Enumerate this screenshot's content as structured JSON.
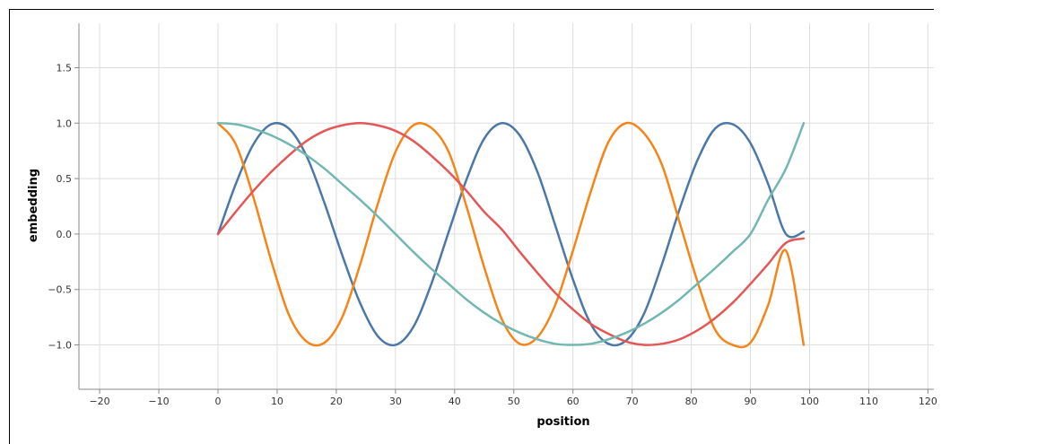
{
  "chart_data": {
    "type": "line",
    "title": "",
    "xlabel": "position",
    "ylabel": "embedding",
    "xlim": [
      -23.5,
      121
    ],
    "ylim": [
      -1.4,
      1.9
    ],
    "x_ticks": [
      -20,
      -10,
      0,
      10,
      20,
      30,
      40,
      50,
      60,
      70,
      80,
      90,
      100,
      110,
      120
    ],
    "y_ticks": [
      -1.0,
      -0.5,
      0.0,
      0.5,
      1.0,
      1.5
    ],
    "x_tick_labels": [
      "−20",
      "−10",
      "0",
      "10",
      "20",
      "30",
      "40",
      "50",
      "60",
      "70",
      "80",
      "90",
      "100",
      "110",
      "120"
    ],
    "y_tick_labels": [
      "−1.0",
      "−0.5",
      "0.0",
      "0.5",
      "1.0",
      "1.5"
    ],
    "grid": true,
    "legend": "none",
    "x": [
      0,
      3,
      6,
      9,
      12,
      15,
      18,
      21,
      24,
      27,
      30,
      33,
      36,
      39,
      42,
      45,
      48,
      51,
      54,
      57,
      60,
      63,
      66,
      69,
      72,
      75,
      78,
      81,
      84,
      87,
      90,
      93,
      96,
      99
    ],
    "series": [
      {
        "color": "#4c78a8",
        "values": [
          0.0,
          0.45,
          0.81,
          0.99,
          0.95,
          0.7,
          0.28,
          -0.19,
          -0.62,
          -0.92,
          -1.0,
          -0.84,
          -0.46,
          0.02,
          0.49,
          0.86,
          1.0,
          0.89,
          0.56,
          0.08,
          -0.41,
          -0.81,
          -0.99,
          -0.96,
          -0.72,
          -0.28,
          0.22,
          0.66,
          0.95,
          0.99,
          0.82,
          0.45,
          0.0,
          0.02
        ]
      },
      {
        "color": "#f58518",
        "values": [
          1.0,
          0.81,
          0.33,
          -0.24,
          -0.73,
          -0.97,
          -0.98,
          -0.75,
          -0.28,
          0.27,
          0.74,
          0.98,
          0.96,
          0.74,
          0.25,
          -0.3,
          -0.77,
          -0.99,
          -0.93,
          -0.64,
          -0.15,
          0.38,
          0.83,
          1.0,
          0.91,
          0.63,
          0.11,
          -0.42,
          -0.86,
          -1.0,
          -0.98,
          -0.64,
          -0.15,
          -1.0
        ]
      },
      {
        "color": "#e45756",
        "values": [
          0.0,
          0.2,
          0.39,
          0.56,
          0.71,
          0.84,
          0.93,
          0.98,
          1.0,
          0.98,
          0.93,
          0.84,
          0.71,
          0.56,
          0.39,
          0.2,
          0.04,
          -0.16,
          -0.35,
          -0.53,
          -0.68,
          -0.81,
          -0.9,
          -0.97,
          -1.0,
          -0.99,
          -0.95,
          -0.87,
          -0.76,
          -0.62,
          -0.45,
          -0.27,
          -0.08,
          -0.04
        ]
      },
      {
        "color": "#72b7b2",
        "values": [
          1.0,
          0.99,
          0.95,
          0.89,
          0.81,
          0.71,
          0.59,
          0.45,
          0.31,
          0.16,
          0.0,
          -0.16,
          -0.31,
          -0.45,
          -0.59,
          -0.71,
          -0.81,
          -0.89,
          -0.95,
          -0.99,
          -1.0,
          -0.99,
          -0.95,
          -0.89,
          -0.81,
          -0.71,
          -0.59,
          -0.45,
          -0.31,
          -0.16,
          0.0,
          0.31,
          0.59,
          1.0
        ]
      }
    ]
  }
}
